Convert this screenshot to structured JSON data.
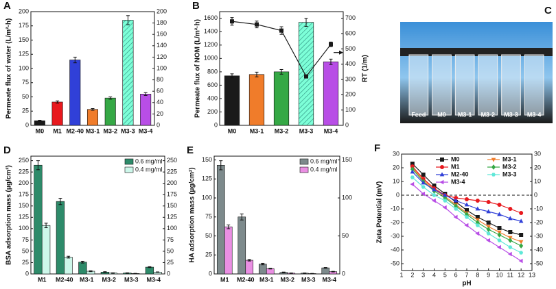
{
  "chart_data": [
    {
      "type": "bar",
      "panel": "A",
      "ylabel": "Permeate flux of water  (L/m²·h)",
      "categories": [
        "M0",
        "M1",
        "M2-40",
        "M3-1",
        "M3-2",
        "M3-3",
        "M3-4"
      ],
      "series": [
        {
          "values": [
            8,
            41,
            115,
            28,
            48,
            185,
            55
          ],
          "errors": [
            1,
            2,
            5,
            1.5,
            2,
            8,
            2.5
          ],
          "colors": [
            "#1a1a1a",
            "#e8191e",
            "#3040d8",
            "#f07c2a",
            "#35a845",
            "#7dffd8",
            "#b84ee6"
          ],
          "hatch": [
            false,
            false,
            false,
            false,
            false,
            true,
            false
          ]
        }
      ],
      "ylim": [
        0,
        200
      ],
      "yticks": [
        0,
        25,
        50,
        75,
        100,
        125,
        150,
        175,
        200
      ],
      "y2lim": [
        0,
        200
      ],
      "y2ticks": [
        0,
        20,
        40,
        60,
        80,
        100,
        120,
        140,
        160,
        180,
        200
      ]
    },
    {
      "type": "bar",
      "panel": "B",
      "ylabel": "Permeate flux of NOM  (L/m²·h)",
      "y2label": "RT (1/m)",
      "categories": [
        "M0",
        "M3-1",
        "M3-2",
        "M3-3",
        "M3-4"
      ],
      "series": [
        {
          "values": [
            740,
            760,
            800,
            1540,
            950
          ],
          "errors": [
            30,
            35,
            35,
            60,
            40
          ],
          "colors": [
            "#1a1a1a",
            "#f07c2a",
            "#35a845",
            "#7dffd8",
            "#b84ee6"
          ],
          "hatch": [
            false,
            false,
            false,
            true,
            false
          ]
        },
        {
          "kind": "line",
          "axis": "y2",
          "color": "#1a1a1a",
          "marker": "square",
          "values": [
            680,
            660,
            620,
            320,
            530
          ],
          "errors": [
            25,
            22,
            25,
            10,
            15
          ]
        }
      ],
      "ylim": [
        0,
        1700
      ],
      "yticks": [
        0,
        200,
        400,
        600,
        800,
        1000,
        1200,
        1400,
        1600
      ],
      "y2lim": [
        0,
        743.75
      ],
      "y2ticks": [
        0,
        100,
        200,
        300,
        400,
        500,
        600,
        700
      ]
    },
    {
      "type": "photo",
      "panel": "C",
      "labels": [
        "Feed",
        "M0",
        "M3-1",
        "M3-2",
        "M3-3",
        "M3-4"
      ]
    },
    {
      "type": "bar",
      "panel": "D",
      "ylabel": "BSA adsorption mass (μg/cm²)",
      "categories": [
        "M1",
        "M2-40",
        "M3-1",
        "M3-2",
        "M3-3",
        "M3-4"
      ],
      "series": [
        {
          "name": "0.6 mg/ml",
          "color": "#2e8b6a",
          "values": [
            240,
            160,
            26,
            4,
            2,
            15
          ],
          "errors": [
            10,
            7,
            2,
            1,
            0.5,
            1
          ]
        },
        {
          "name": "0.4 mg/ml",
          "color": "#cdf7ea",
          "values": [
            107,
            37,
            6,
            2,
            1,
            4
          ],
          "errors": [
            5,
            2,
            1,
            0.5,
            0.3,
            0.5
          ]
        }
      ],
      "legend": "upper right",
      "ylim": [
        0,
        260
      ],
      "yticks": [
        0,
        25,
        50,
        75,
        100,
        125,
        150,
        175,
        200,
        225,
        250
      ],
      "y2lim": [
        0,
        260
      ],
      "y2ticks": [
        0,
        25,
        50,
        75,
        100,
        125,
        150,
        175,
        200,
        225,
        250
      ]
    },
    {
      "type": "bar",
      "panel": "E",
      "ylabel": "HA adsorption mass (μg/cm²)",
      "categories": [
        "M1",
        "M2-40",
        "M3-1",
        "M3-2",
        "M3-3",
        "M3-4"
      ],
      "series": [
        {
          "name": "0.6 mg/ml",
          "color": "#7d8a8c",
          "values": [
            143,
            75,
            13,
            2,
            1,
            8
          ],
          "errors": [
            6,
            4,
            1,
            0.5,
            0.3,
            0.5
          ]
        },
        {
          "name": "0.4 mg/ml",
          "color": "#ea8fe3",
          "values": [
            62,
            18,
            7,
            1,
            0.5,
            3
          ],
          "errors": [
            2.5,
            1,
            0.5,
            0.3,
            0.2,
            0.4
          ]
        }
      ],
      "legend": "upper right",
      "ylim": [
        0,
        155
      ],
      "yticks": [
        0,
        25,
        50,
        75,
        100,
        125,
        150
      ],
      "y2lim": [
        0,
        155
      ],
      "y2ticks": [
        0,
        50,
        100,
        150
      ]
    },
    {
      "type": "line",
      "panel": "F",
      "xlabel": "pH",
      "ylabel": "Zeta Potential  (mV)",
      "x": [
        2,
        3,
        4,
        5,
        6,
        7,
        8,
        9,
        10,
        11,
        12
      ],
      "series": [
        {
          "name": "M0",
          "color": "#1a1a1a",
          "marker": "square",
          "values": [
            23,
            15,
            7,
            1,
            -5,
            -11,
            -16,
            -20,
            -24,
            -27,
            -29
          ]
        },
        {
          "name": "M3-1",
          "color": "#f07c2a",
          "marker": "down-triangle",
          "values": [
            20,
            11,
            4,
            -1,
            -7,
            -13,
            -18,
            -23,
            -27,
            -31,
            -34
          ]
        },
        {
          "name": "M1",
          "color": "#e8191e",
          "marker": "circle",
          "values": [
            21,
            12,
            5,
            0,
            -2,
            -3,
            -4,
            -5,
            -7,
            -10,
            -13
          ]
        },
        {
          "name": "M3-2",
          "color": "#35a845",
          "marker": "diamond",
          "values": [
            19,
            10,
            3,
            -2,
            -8,
            -14,
            -20,
            -25,
            -29,
            -33,
            -37
          ]
        },
        {
          "name": "M2-40",
          "color": "#3040d8",
          "marker": "triangle",
          "values": [
            17,
            9,
            4,
            0,
            -4,
            -7,
            -10,
            -12,
            -14,
            -17,
            -19
          ]
        },
        {
          "name": "M3-3",
          "color": "#5fe8d8",
          "marker": "hexagon",
          "values": [
            13,
            6,
            0,
            -4,
            -10,
            -16,
            -22,
            -28,
            -33,
            -38,
            -42
          ]
        },
        {
          "name": "M3-4",
          "color": "#b84ee6",
          "marker": "left-triangle",
          "values": [
            8,
            1,
            -4,
            -9,
            -16,
            -22,
            -28,
            -33,
            -38,
            -43,
            -48
          ]
        }
      ],
      "zero_line": true,
      "xlim": [
        1,
        13
      ],
      "xticks": [
        1,
        2,
        3,
        4,
        5,
        6,
        7,
        8,
        9,
        10,
        11,
        12,
        13
      ],
      "ylim": [
        -55,
        30
      ],
      "yticks": [
        -50,
        -40,
        -30,
        -20,
        -10,
        0,
        10,
        20,
        30
      ],
      "y2lim": [
        -55,
        30
      ],
      "y2ticks": [
        -50,
        -40,
        -30,
        -20,
        -10,
        0,
        10,
        20,
        30
      ]
    }
  ]
}
